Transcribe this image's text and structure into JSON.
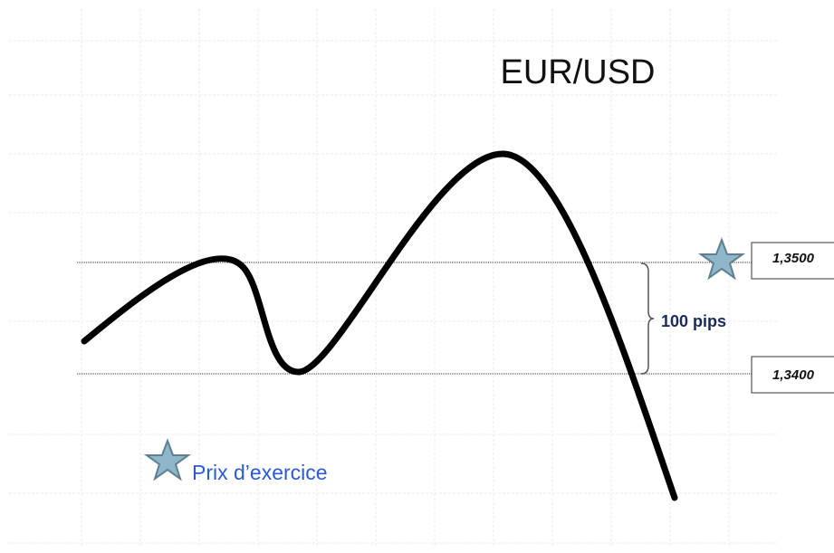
{
  "title": "EUR/USD",
  "levels": [
    {
      "label": "1,3500"
    },
    {
      "label": "1,3400"
    }
  ],
  "range_label": "100 pips",
  "legend": {
    "label": "Prix d’exercice"
  }
}
